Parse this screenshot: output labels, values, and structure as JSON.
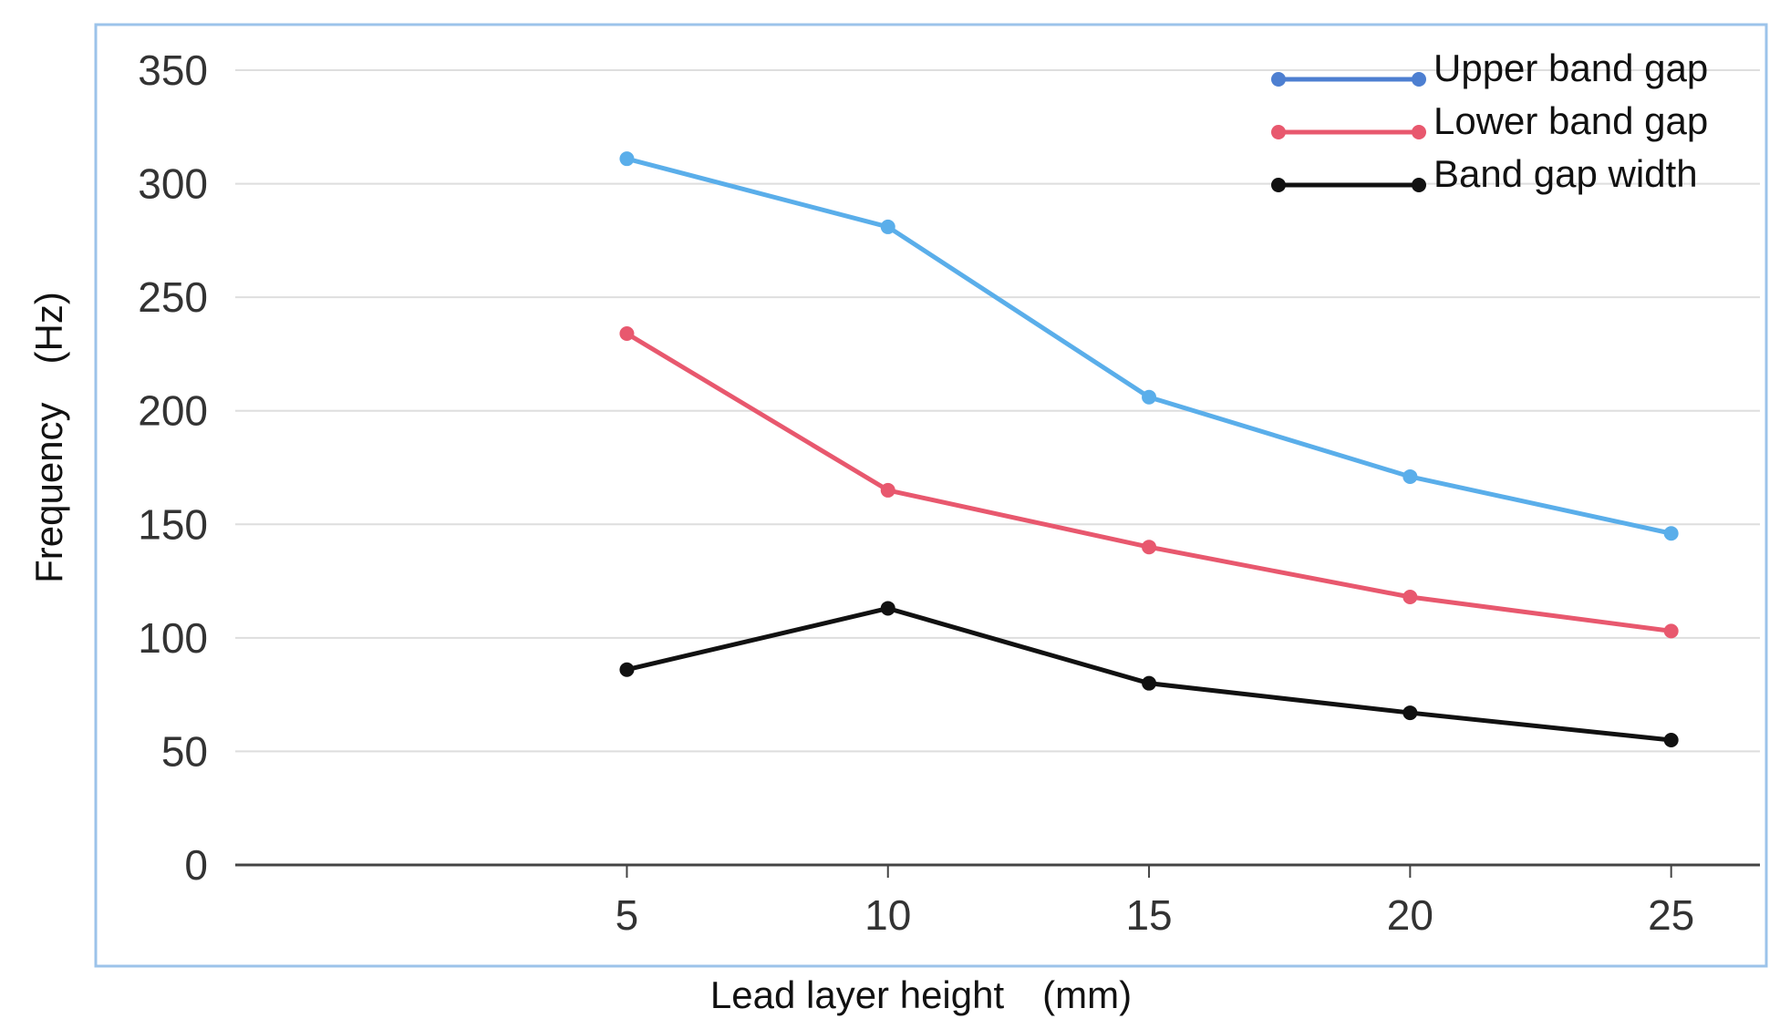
{
  "chart_data": {
    "type": "line",
    "title": "",
    "xlabel": "Lead layer height　(mm)",
    "ylabel": "Frequency　(Hz)",
    "x": [
      5,
      10,
      15,
      20,
      25
    ],
    "x_tick_labels": [
      "5",
      "10",
      "15",
      "20",
      "25"
    ],
    "xlim": [
      -2.5,
      26.7
    ],
    "ylim": [
      0,
      350
    ],
    "y_ticks": [
      0,
      50,
      100,
      150,
      200,
      250,
      300,
      350
    ],
    "y_tick_labels": [
      "0",
      "50",
      "100",
      "150",
      "200",
      "250",
      "300",
      "350"
    ],
    "grid": true,
    "legend_position": "top-right",
    "series": [
      {
        "name": "Upper band gap",
        "color": "#5aaeea",
        "legend_color": "#4d7fd1",
        "values": [
          311,
          281,
          206,
          171,
          146
        ]
      },
      {
        "name": "Lower band gap",
        "color": "#e8586e",
        "legend_color": "#e8586e",
        "values": [
          234,
          165,
          140,
          118,
          103
        ]
      },
      {
        "name": "Band gap width",
        "color": "#111111",
        "legend_color": "#111111",
        "values": [
          86,
          113,
          80,
          67,
          55
        ]
      }
    ]
  }
}
